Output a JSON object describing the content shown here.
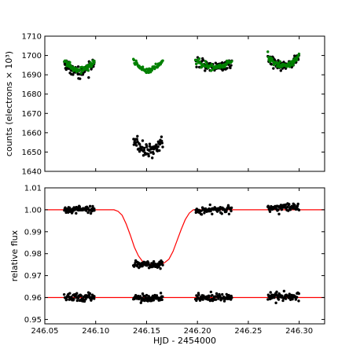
{
  "colors": {
    "black_points": "#000000",
    "green_points": "#008000",
    "model_line": "#ff0000",
    "axes": "#000000",
    "background": "#ffffff"
  },
  "chart_data": [
    {
      "type": "scatter",
      "panel": "top",
      "ylabel": "counts (electrons × 10³)",
      "xlabel": "",
      "xlim": [
        246.05,
        246.325
      ],
      "ylim": [
        1640,
        1710
      ],
      "yticks": [
        "1640",
        "1650",
        "1660",
        "1670",
        "1680",
        "1690",
        "1700",
        "1710"
      ],
      "xticks_labeled": false,
      "grid": false,
      "series": [
        {
          "color": "black",
          "clusters": [
            {
              "x_range": [
                246.069,
                246.099
              ],
              "profile": "bowl",
              "edge_y": 1697.5,
              "center_y": 1691.5,
              "scatter": 1.6,
              "n": 70
            },
            {
              "x_range": [
                246.137,
                246.166
              ],
              "profile": "bowl",
              "edge_y": 1656.5,
              "center_y": 1650.5,
              "scatter": 1.8,
              "n": 70
            },
            {
              "x_range": [
                246.198,
                246.234
              ],
              "profile": "bowl",
              "edge_y": 1697.0,
              "center_y": 1694.0,
              "scatter": 1.6,
              "n": 70
            },
            {
              "x_range": [
                246.269,
                246.3
              ],
              "profile": "bowl",
              "edge_y": 1699.5,
              "center_y": 1694.5,
              "scatter": 1.6,
              "n": 70
            }
          ]
        },
        {
          "color": "green",
          "clusters": [
            {
              "x_range": [
                246.069,
                246.099
              ],
              "profile": "bowl",
              "edge_y": 1697.0,
              "center_y": 1692.5,
              "scatter": 0.8,
              "n": 60
            },
            {
              "x_range": [
                246.137,
                246.166
              ],
              "profile": "bowl",
              "edge_y": 1697.5,
              "center_y": 1692.5,
              "scatter": 0.7,
              "n": 60
            },
            {
              "x_range": [
                246.198,
                246.234
              ],
              "profile": "bowl",
              "edge_y": 1698.0,
              "center_y": 1694.0,
              "scatter": 0.8,
              "n": 60
            },
            {
              "x_range": [
                246.269,
                246.3
              ],
              "profile": "bowl",
              "edge_y": 1700.0,
              "center_y": 1694.5,
              "scatter": 0.8,
              "n": 60
            }
          ]
        }
      ]
    },
    {
      "type": "scatter",
      "panel": "bottom",
      "ylabel": "relative flux",
      "xlabel": "HJD - 2454000",
      "xlim": [
        246.05,
        246.325
      ],
      "ylim": [
        0.948,
        1.01
      ],
      "yticks": [
        "0.95",
        "0.96",
        "0.97",
        "0.98",
        "0.99",
        "1.00",
        "1.01"
      ],
      "xticks": [
        "246.05",
        "246.10",
        "246.15",
        "246.20",
        "246.25",
        "246.30"
      ],
      "grid": false,
      "series": [
        {
          "color": "black",
          "clusters": [
            {
              "x_range": [
                246.069,
                246.099
              ],
              "level": 1.0,
              "scatter": 0.0009,
              "n": 70
            },
            {
              "x_range": [
                246.137,
                246.166
              ],
              "level": 0.9752,
              "scatter": 0.0009,
              "n": 70
            },
            {
              "x_range": [
                246.198,
                246.234
              ],
              "level": 1.0,
              "scatter": 0.0009,
              "n": 70
            },
            {
              "x_range": [
                246.269,
                246.3
              ],
              "level": 1.001,
              "scatter": 0.0009,
              "n": 70
            },
            {
              "x_range": [
                246.069,
                246.099
              ],
              "level": 0.96,
              "scatter": 0.0009,
              "n": 70
            },
            {
              "x_range": [
                246.137,
                246.166
              ],
              "level": 0.96,
              "scatter": 0.0009,
              "n": 70
            },
            {
              "x_range": [
                246.198,
                246.234
              ],
              "level": 0.96,
              "scatter": 0.0009,
              "n": 70
            },
            {
              "x_range": [
                246.269,
                246.3
              ],
              "level": 0.9605,
              "scatter": 0.0009,
              "n": 70
            }
          ]
        },
        {
          "type": "line",
          "color": "red",
          "x": [
            246.05,
            246.118,
            246.122,
            246.126,
            246.13,
            246.134,
            246.138,
            246.142,
            246.146,
            246.15,
            246.155,
            246.16,
            246.165,
            246.168,
            246.172,
            246.176,
            246.18,
            246.184,
            246.188,
            246.192,
            246.196,
            246.325
          ],
          "y": [
            1.0,
            1.0,
            0.9993,
            0.9975,
            0.9935,
            0.9885,
            0.983,
            0.979,
            0.9765,
            0.9755,
            0.975,
            0.975,
            0.9752,
            0.976,
            0.9775,
            0.981,
            0.986,
            0.991,
            0.9955,
            0.9985,
            1.0,
            1.0
          ]
        },
        {
          "type": "line",
          "color": "red",
          "x": [
            246.05,
            246.325
          ],
          "y": [
            0.96,
            0.96
          ]
        }
      ]
    }
  ]
}
